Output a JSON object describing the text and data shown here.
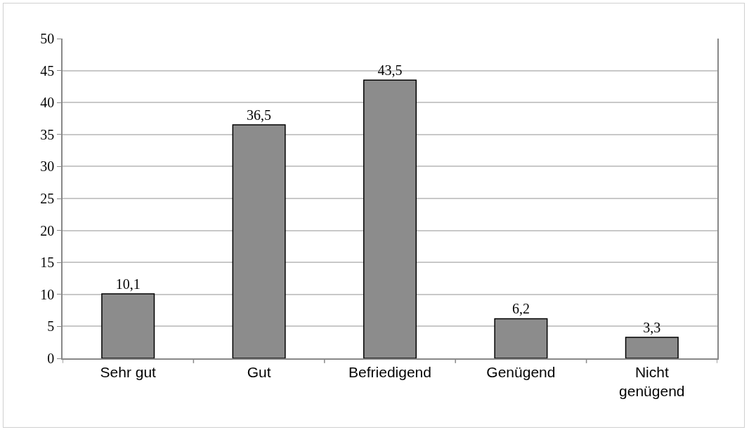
{
  "chart_data": {
    "type": "bar",
    "categories": [
      "Sehr gut",
      "Gut",
      "Befriedigend",
      "Genügend",
      "Nicht\ngenügend"
    ],
    "values": [
      10.1,
      36.5,
      43.5,
      6.2,
      3.3
    ],
    "value_labels": [
      "10,1",
      "36,5",
      "43,5",
      "6,2",
      "3,3"
    ],
    "color": "#8c8c8c",
    "ylim": [
      0,
      50
    ],
    "yticks": [
      0,
      5,
      10,
      15,
      20,
      25,
      30,
      35,
      40,
      45,
      50
    ],
    "grid": "y"
  }
}
